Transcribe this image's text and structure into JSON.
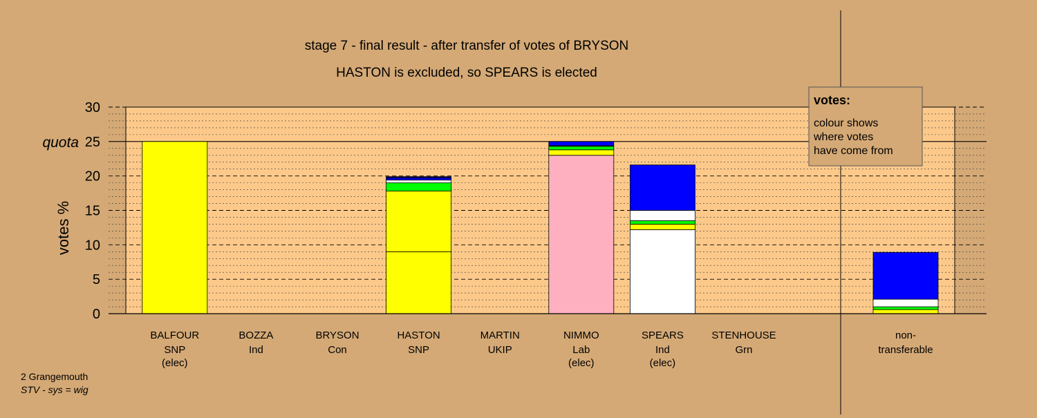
{
  "chart_data": {
    "type": "bar",
    "title": "stage 7 - final result - after transfer of votes of BRYSON",
    "subtitle": "HASTON is excluded, so SPEARS is elected",
    "ylabel": "votes %",
    "ylim": [
      0,
      30
    ],
    "yticks": [
      "0",
      "5",
      "10",
      "15",
      "20",
      "25",
      "30"
    ],
    "quota_label": "quota",
    "quota": 25,
    "legend": {
      "title": "votes:",
      "lines": [
        "colour shows",
        "where votes",
        "have come from"
      ],
      "position": "top-right"
    },
    "footnote": {
      "line1": "2 Grangemouth",
      "line2": "STV - sys = wig"
    },
    "colors": {
      "background": "#d4a976",
      "plot_area": "#fcc98a",
      "SNP": "#ffff00",
      "Ind": "#ffffff",
      "Con": "#0000ff",
      "Grn": "#00ff00",
      "Lab": "#ffb0c0",
      "UKIP": "#000080"
    },
    "candidates": [
      {
        "name": "BALFOUR",
        "party": "SNP",
        "status": "(elec)",
        "segments": [
          {
            "from": "SNP",
            "value": 25.0
          }
        ]
      },
      {
        "name": "BOZZA",
        "party": "Ind",
        "status": "",
        "segments": []
      },
      {
        "name": "BRYSON",
        "party": "Con",
        "status": "",
        "segments": []
      },
      {
        "name": "HASTON",
        "party": "SNP",
        "status": "",
        "segments": [
          {
            "from": "SNP",
            "value": 9.0
          },
          {
            "from": "SNP",
            "value": 8.8
          },
          {
            "from": "Grn",
            "value": 1.2
          },
          {
            "from": "Ind",
            "value": 0.4
          },
          {
            "from": "Con",
            "value": 0.3
          },
          {
            "from": "UKIP",
            "value": 0.2
          }
        ]
      },
      {
        "name": "MARTIN",
        "party": "UKIP",
        "status": "",
        "segments": []
      },
      {
        "name": "NIMMO",
        "party": "Lab",
        "status": "(elec)",
        "segments": [
          {
            "from": "Lab",
            "value": 23.0
          },
          {
            "from": "SNP",
            "value": 0.8
          },
          {
            "from": "Grn",
            "value": 0.5
          },
          {
            "from": "Ind",
            "value": 0.1
          },
          {
            "from": "Con",
            "value": 0.6
          }
        ]
      },
      {
        "name": "SPEARS",
        "party": "Ind",
        "status": "(elec)",
        "segments": [
          {
            "from": "Ind",
            "value": 12.2
          },
          {
            "from": "SNP",
            "value": 0.8
          },
          {
            "from": "Grn",
            "value": 0.5
          },
          {
            "from": "Ind",
            "value": 1.5
          },
          {
            "from": "Con",
            "value": 6.6
          }
        ]
      },
      {
        "name": "STENHOUSE",
        "party": "Grn",
        "status": "",
        "segments": []
      }
    ],
    "non_transferable": {
      "label_line1": "non-",
      "label_line2": "transferable",
      "segments": [
        {
          "from": "SNP",
          "value": 0.6
        },
        {
          "from": "Grn",
          "value": 0.4
        },
        {
          "from": "Ind",
          "value": 1.1
        },
        {
          "from": "Con",
          "value": 6.8
        }
      ]
    }
  }
}
